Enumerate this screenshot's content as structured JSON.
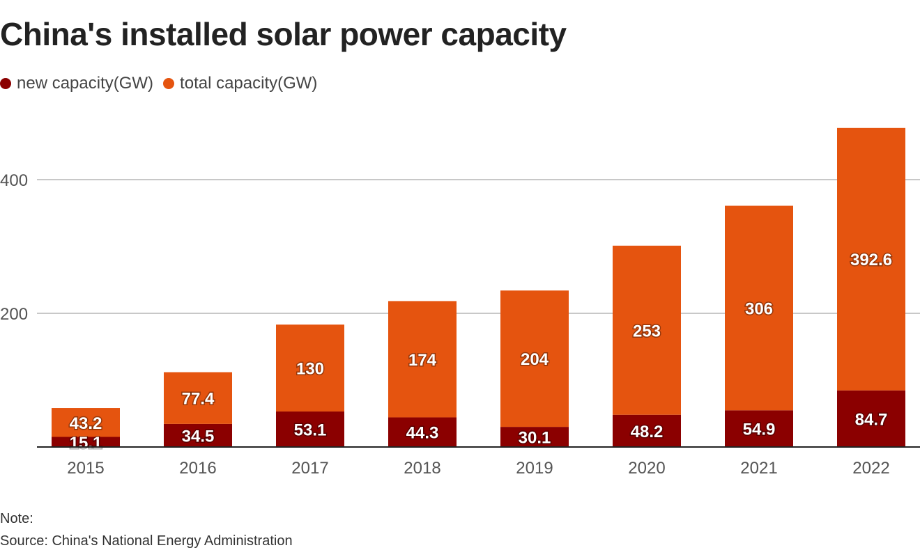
{
  "chart_data": {
    "type": "bar",
    "stacked": true,
    "title": "China's installed solar power capacity",
    "categories": [
      "2015",
      "2016",
      "2017",
      "2018",
      "2019",
      "2020",
      "2021",
      "2022"
    ],
    "series": [
      {
        "name": "new capacity(GW)",
        "color": "#8b0000",
        "values": [
          15.1,
          34.5,
          53.1,
          44.3,
          30.1,
          48.2,
          54.9,
          84.7
        ]
      },
      {
        "name": "total capacity(GW)",
        "color": "#e5540f",
        "values": [
          43.2,
          77.4,
          130,
          174,
          204,
          253,
          306,
          392.6
        ]
      }
    ],
    "value_labels": {
      "new": [
        "15.1",
        "34.5",
        "53.1",
        "44.3",
        "30.1",
        "48.2",
        "54.9",
        "84.7"
      ],
      "total": [
        "43.2",
        "77.4",
        "130",
        "174",
        "204",
        "253",
        "306",
        "392.6"
      ]
    },
    "yticks": [
      "200",
      "400"
    ],
    "ylim": [
      0,
      500
    ],
    "grid": true,
    "legend_position": "top-left",
    "note": "Note:",
    "source": "Source: China's National Energy Administration"
  }
}
